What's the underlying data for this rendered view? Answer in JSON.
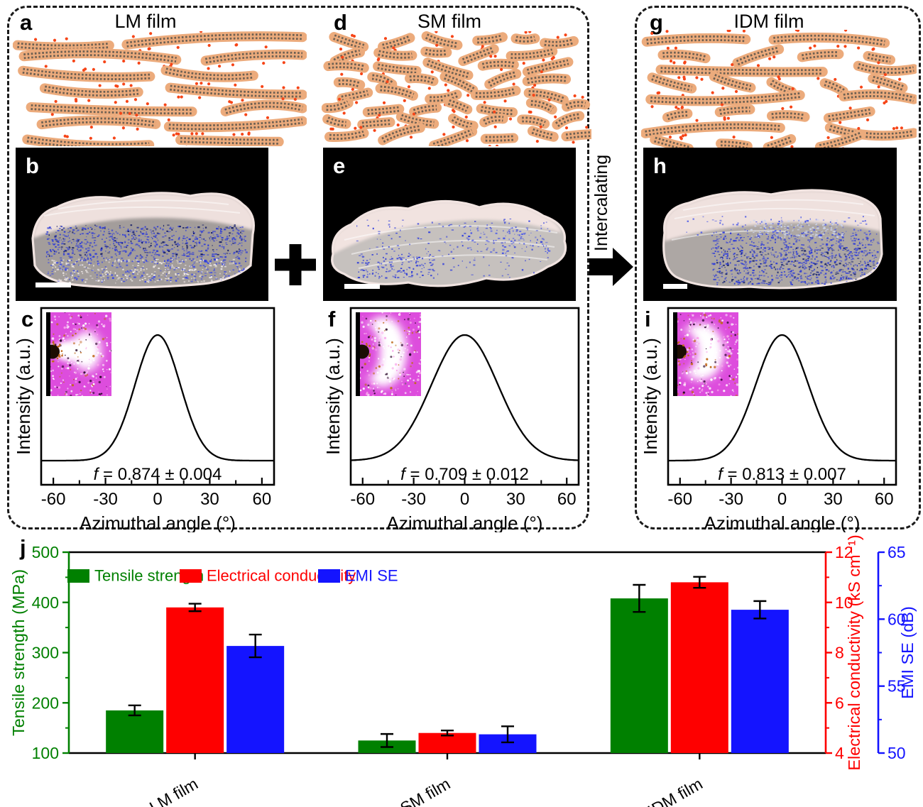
{
  "panels": {
    "a": {
      "label": "a",
      "title": "LM film"
    },
    "b": {
      "label": "b"
    },
    "c": {
      "label": "c",
      "anisotropy": {
        "symbol": "f",
        "value": "0.874",
        "uncertainty": "0.004"
      },
      "curve_sigma_deg": 13
    },
    "d": {
      "label": "d",
      "title": "SM film"
    },
    "e": {
      "label": "e"
    },
    "f": {
      "label": "f",
      "anisotropy": {
        "symbol": "f",
        "value": "0.709",
        "uncertainty": "0.012"
      },
      "curve_sigma_deg": 19.5
    },
    "g": {
      "label": "g",
      "title": "IDM film"
    },
    "h": {
      "label": "h"
    },
    "i": {
      "label": "i",
      "anisotropy": {
        "symbol": "f",
        "value": "0.813",
        "uncertainty": "0.007"
      },
      "curve_sigma_deg": 15.5
    },
    "j": {
      "label": "j"
    }
  },
  "connectors": {
    "plus": "+",
    "arrow_label": "Intercalating"
  },
  "azimuthal_axes": {
    "ylabel": "Intensity (a.u.)",
    "xlabel": "Azimuthal angle (°)",
    "xtick_values": [
      -60,
      -30,
      0,
      30,
      60
    ],
    "x_range": [
      -67,
      67
    ],
    "minor_tick_step": 15
  },
  "chart_data": {
    "type": "bar",
    "categories": [
      "LM film",
      "SM film",
      "IDM film"
    ],
    "series": [
      {
        "name": "Tensile strength",
        "axis": "left",
        "color": "#008000",
        "values": [
          185,
          125,
          408
        ],
        "errors": [
          10,
          13,
          27
        ]
      },
      {
        "name": "Electrical conductivity",
        "axis": "right1",
        "color": "#fe0000",
        "values": [
          9.8,
          4.8,
          10.8
        ],
        "errors": [
          0.15,
          0.1,
          0.22
        ]
      },
      {
        "name": "EMI SE",
        "axis": "right2",
        "color": "#1414ff",
        "values": [
          58.0,
          51.4,
          60.7
        ],
        "errors": [
          0.85,
          0.6,
          0.65
        ]
      }
    ],
    "axes": {
      "left": {
        "label": "Tensile strength (MPa)",
        "color": "#008000",
        "min": 100,
        "max": 500,
        "major_ticks": [
          100,
          200,
          300,
          400,
          500
        ],
        "minor_step": 50
      },
      "right1": {
        "label": "Electrical conductivity (kS cm⁻¹)",
        "color": "#fe0000",
        "min": 4,
        "max": 12,
        "major_ticks": [
          4,
          6,
          8,
          10,
          12
        ],
        "minor_step": 1
      },
      "right2": {
        "label": "EMI SE (dB)",
        "color": "#1414ff",
        "min": 50,
        "max": 65,
        "major_ticks": [
          50,
          55,
          60,
          65
        ],
        "minor_step": 2.5
      }
    },
    "legend_position": "top-left",
    "grid": false
  },
  "colors": {
    "sheet_body": "#ecab7c",
    "sheet_dots": "#6e6052",
    "sheet_ions": "#f64518",
    "tomo_blue": "#2e3cd8",
    "inset_magenta": "#dd4ddd"
  }
}
